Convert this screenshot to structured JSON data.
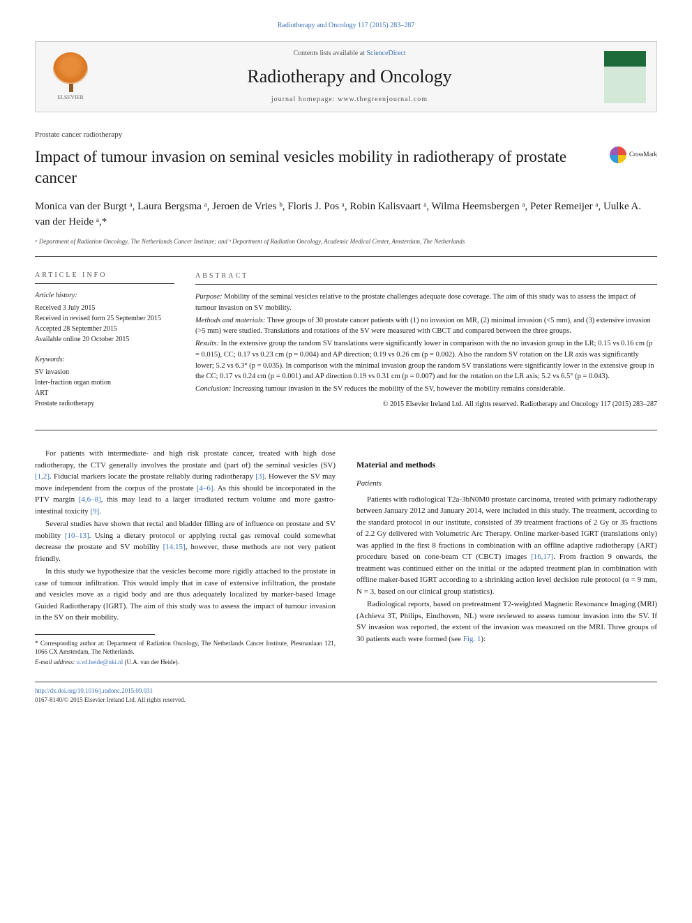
{
  "header": {
    "citation": "Radiotherapy and Oncology 117 (2015) 283–287",
    "contents_prefix": "Contents lists available at ",
    "contents_link": "ScienceDirect",
    "journal_name": "Radiotherapy and Oncology",
    "homepage_label": "journal homepage: www.thegreenjournal.com",
    "elsevier": "ELSEVIER"
  },
  "article": {
    "type": "Prostate cancer radiotherapy",
    "title": "Impact of tumour invasion on seminal vesicles mobility in radiotherapy of prostate cancer",
    "crossmark": "CrossMark"
  },
  "authors": {
    "line": "Monica van der Burgt ᵃ, Laura Bergsma ᵃ, Jeroen de Vries ᵇ, Floris J. Pos ᵃ, Robin Kalisvaart ᵃ, Wilma Heemsbergen ᵃ, Peter Remeijer ᵃ, Uulke A. van der Heide ᵃ,*",
    "affiliations": "ᵃ Department of Radiation Oncology, The Netherlands Cancer Institute; and ᵇ Department of Radiation Oncology, Academic Medical Center, Amsterdam, The Netherlands"
  },
  "info": {
    "heading": "ARTICLE INFO",
    "history_label": "Article history:",
    "history": "Received 3 July 2015\nReceived in revised form 25 September 2015\nAccepted 28 September 2015\nAvailable online 20 October 2015",
    "keywords_label": "Keywords:",
    "keywords": "SV invasion\nInter-fraction organ motion\nART\nProstate radiotherapy"
  },
  "abstract": {
    "heading": "ABSTRACT",
    "purpose_label": "Purpose: ",
    "purpose": "Mobility of the seminal vesicles relative to the prostate challenges adequate dose coverage. The aim of this study was to assess the impact of tumour invasion on SV mobility.",
    "methods_label": "Methods and materials: ",
    "methods": "Three groups of 30 prostate cancer patients with (1) no invasion on MR, (2) minimal invasion (<5 mm), and (3) extensive invasion (>5 mm) were studied. Translations and rotations of the SV were measured with CBCT and compared between the three groups.",
    "results_label": "Results: ",
    "results": "In the extensive group the random SV translations were significantly lower in comparison with the no invasion group in the LR; 0.15 vs 0.16 cm (p = 0.015), CC; 0.17 vs 0.23 cm (p = 0.004) and AP direction; 0.19 vs 0.26 cm (p = 0.002). Also the random SV rotation on the LR axis was significantly lower; 5.2 vs 6.3° (p = 0.035). In comparison with the minimal invasion group the random SV translations were significantly lower in the extensive group in the CC; 0.17 vs 0.24 cm (p = 0.001) and AP direction 0.19 vs 0.31 cm (p = 0.007) and for the rotation on the LR axis; 5.2 vs 6.5° (p = 0.043).",
    "conclusion_label": "Conclusion: ",
    "conclusion": "Increasing tumour invasion in the SV reduces the mobility of the SV, however the mobility remains considerable.",
    "copyright": "© 2015 Elsevier Ireland Ltd. All rights reserved. Radiotherapy and Oncology 117 (2015) 283–287"
  },
  "body": {
    "left": {
      "p1a": "For patients with intermediate- and high risk prostate cancer, treated with high dose radiotherapy, the CTV generally involves the prostate and (part of) the seminal vesicles (SV) ",
      "ref1": "[1,2]",
      "p1b": ". Fiducial markers locate the prostate reliably during radiotherapy ",
      "ref2": "[3]",
      "p1c": ". However the SV may move independent from the corpus of the prostate ",
      "ref3": "[4–6]",
      "p1d": ". As this should be incorporated in the PTV margin ",
      "ref4": "[4,6–8]",
      "p1e": ", this may lead to a larger irradiated rectum volume and more gastro-intestinal toxicity ",
      "ref5": "[9]",
      "p1f": ".",
      "p2a": "Several studies have shown that rectal and bladder filling are of influence on prostate and SV mobility ",
      "ref6": "[10–13]",
      "p2b": ". Using a dietary protocol or applying rectal gas removal could somewhat decrease the prostate and SV mobility ",
      "ref7": "[14,15]",
      "p2c": ", however, these methods are not very patient friendly.",
      "p3": "In this study we hypothesize that the vesicles become more rigidly attached to the prostate in case of tumour infiltration. This would imply that in case of extensive infiltration, the prostate and vesicles move as a rigid body and are thus adequately localized by marker-based Image Guided Radiotherapy (IGRT). The aim of this study was to assess the impact of tumour invasion in the SV on their mobility."
    },
    "right": {
      "heading": "Material and methods",
      "sub1": "Patients",
      "p1a": "Patients with radiological T2a-3bN0M0 prostate carcinoma, treated with primary radiotherapy between January 2012 and January 2014, were included in this study. The treatment, according to the standard protocol in our institute, consisted of 39 treatment fractions of 2 Gy or 35 fractions of 2.2 Gy delivered with Volumetric Arc Therapy. Online marker-based IGRT (translations only) was applied in the first 8 fractions in combination with an offline adaptive radiotherapy (ART) procedure based on cone-beam CT (CBCT) images ",
      "ref1": "[16,17]",
      "p1b": ". From fraction 9 onwards, the treatment was continued either on the initial or the adapted treatment plan in combination with offline maker-based IGRT according to a shrinking action level decision rule protocol (α = 9 mm, N = 3, based on our clinical group statistics).",
      "p2a": "Radiological reports, based on pretreatment T2-weighted Magnetic Resonance Imaging (MRI) (Achieva 3T, Philips, Eindhoven, NL) were reviewed to assess tumour invasion into the SV. If SV invasion was reported, the extent of the invasion was measured on the MRI. Three groups of 30 patients each were formed (see ",
      "ref2": "Fig. 1",
      "p2b": "):"
    }
  },
  "footnote": {
    "corr": "* Corresponding author at: Department of Radiation Oncology, The Netherlands Cancer Institute, Plesmanlaan 121, 1066 CX Amsterdam, The Netherlands.",
    "email_label": "E-mail address: ",
    "email": "u.vd.heide@nki.nl",
    "email_name": " (U.A. van der Heide)."
  },
  "footer": {
    "doi": "http://dx.doi.org/10.1016/j.radonc.2015.09.031",
    "issn": "0167-8140/© 2015 Elsevier Ireland Ltd. All rights reserved."
  },
  "colors": {
    "link": "#3b6fb5",
    "text": "#1a1a1a",
    "border": "#333333",
    "header_bg": "#f6f6f6"
  }
}
